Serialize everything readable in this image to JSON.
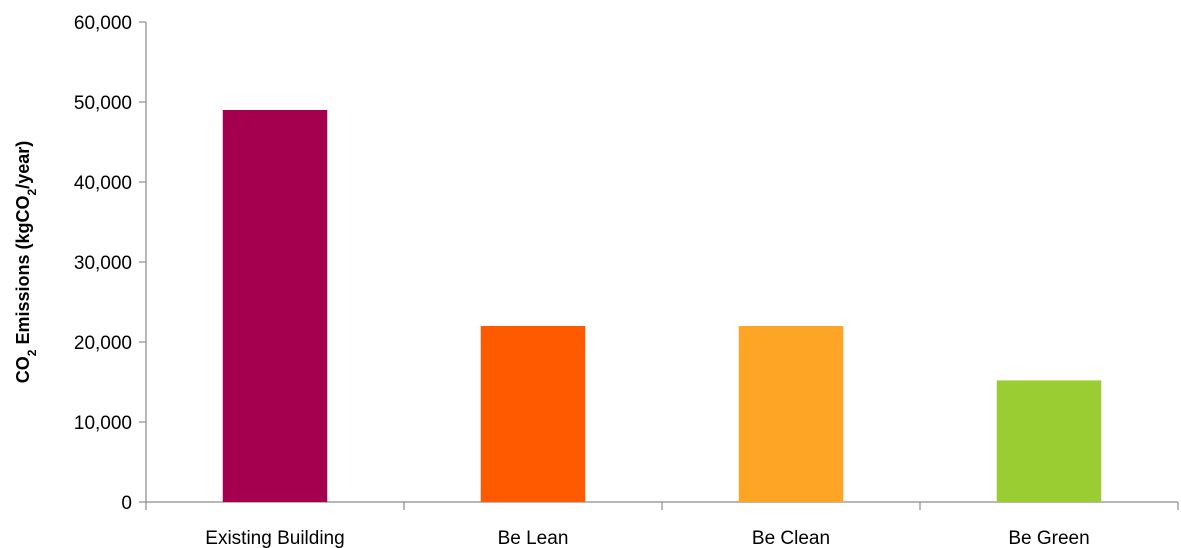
{
  "chart_data": {
    "type": "bar",
    "title": "",
    "xlabel": "",
    "ylabel": {
      "parts": [
        "CO",
        "2",
        " Emissions (kgCO",
        "2",
        "/year)"
      ]
    },
    "categories": [
      "Existing Building",
      "Be Lean",
      "Be Clean",
      "Be Green"
    ],
    "values": [
      49000,
      22000,
      22000,
      15200
    ],
    "colors": [
      "#a50050",
      "#ff5a00",
      "#ffa526",
      "#9acd32"
    ],
    "ylim": [
      0,
      60000
    ],
    "yticks": [
      0,
      10000,
      20000,
      30000,
      40000,
      50000,
      60000
    ],
    "ytick_labels": [
      "0",
      "10,000",
      "20,000",
      "30,000",
      "40,000",
      "50,000",
      "60,000"
    ],
    "grid": false,
    "legend": false
  }
}
